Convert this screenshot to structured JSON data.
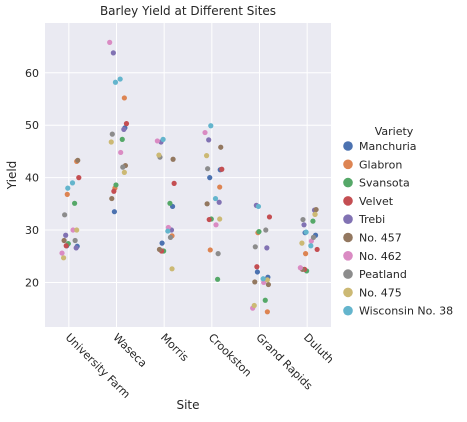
{
  "chart_data": {
    "type": "scatter",
    "style": "strip plot with jitter",
    "title": "Barley Yield at Different Sites",
    "xlabel": "Site",
    "ylabel": "Yield",
    "ylim": [
      11.5,
      69.5
    ],
    "yticks": [
      20,
      30,
      40,
      50,
      60
    ],
    "grid": true,
    "legend_title": "Variety",
    "legend_position": "right",
    "categories": [
      "University Farm",
      "Waseca",
      "Morris",
      "Crookston",
      "Grand Rapids",
      "Duluth"
    ],
    "series": [
      {
        "name": "Manchuria",
        "color": "#4c72b0",
        "values": [
          [
            27.0,
            26.9
          ],
          [
            33.5,
            49.5
          ],
          [
            27.5,
            34.5
          ],
          [
            40.0,
            41.5
          ],
          [
            22.0,
            21.0
          ],
          [
            29.5,
            29.0
          ]
        ]
      },
      {
        "name": "Glabron",
        "color": "#dd8452",
        "values": [
          [
            43.1,
            36.8
          ],
          [
            55.2,
            38.0
          ],
          [
            28.9,
            26.0
          ],
          [
            38.2,
            26.2
          ],
          [
            14.4,
            29.5
          ],
          [
            33.0,
            25.5
          ]
        ]
      },
      {
        "name": "Svansota",
        "color": "#55a868",
        "values": [
          [
            35.1,
            27.4
          ],
          [
            47.3,
            38.6
          ],
          [
            35.1,
            26.0
          ],
          [
            20.6,
            32.1
          ],
          [
            16.6,
            29.7
          ],
          [
            31.7,
            22.2
          ]
        ]
      },
      {
        "name": "Velvet",
        "color": "#c44e52",
        "values": [
          [
            40.0,
            27.0
          ],
          [
            50.3,
            37.4
          ],
          [
            38.9,
            26.0
          ],
          [
            41.6,
            32.0
          ],
          [
            32.5,
            23.0
          ],
          [
            26.3,
            22.5
          ]
        ]
      },
      {
        "name": "Trebi",
        "color": "#8172b3",
        "values": [
          [
            29.0,
            26.6
          ],
          [
            63.8,
            49.2
          ],
          [
            46.8,
            30.0
          ],
          [
            47.2,
            35.3
          ],
          [
            34.7,
            26.6
          ],
          [
            31.0,
            33.8
          ]
        ]
      },
      {
        "name": "No. 457",
        "color": "#937860",
        "values": [
          [
            43.3,
            28.0
          ],
          [
            42.3,
            36.0
          ],
          [
            43.5,
            26.3
          ],
          [
            45.8,
            35.0
          ],
          [
            19.6,
            20.1
          ],
          [
            33.9,
            22.5
          ]
        ]
      },
      {
        "name": "No. 462",
        "color": "#da8bc3",
        "values": [
          [
            25.6,
            30.0
          ],
          [
            65.8,
            44.8
          ],
          [
            47.0,
            30.5
          ],
          [
            48.6,
            31.0
          ],
          [
            15.1,
            20.0
          ],
          [
            22.8,
            27.9
          ]
        ]
      },
      {
        "name": "Peatland",
        "color": "#8c8c8c",
        "values": [
          [
            32.9,
            28.0
          ],
          [
            48.3,
            42.0
          ],
          [
            43.9,
            28.6
          ],
          [
            41.7,
            25.5
          ],
          [
            26.8,
            30.0
          ],
          [
            32.0,
            28.6
          ]
        ]
      },
      {
        "name": "No. 475",
        "color": "#ccb974",
        "values": [
          [
            24.7,
            30.0
          ],
          [
            46.8,
            41.0
          ],
          [
            44.3,
            22.6
          ],
          [
            44.2,
            32.1
          ],
          [
            15.6,
            20.5
          ],
          [
            27.5,
            33.0
          ]
        ]
      },
      {
        "name": "Wisconsin No. 38",
        "color": "#64b5cd",
        "values": [
          [
            38.0,
            39.0
          ],
          [
            58.2,
            58.8
          ],
          [
            47.3,
            29.8
          ],
          [
            49.9,
            36.0
          ],
          [
            34.5,
            20.7
          ],
          [
            29.6,
            27.0
          ]
        ]
      }
    ]
  }
}
